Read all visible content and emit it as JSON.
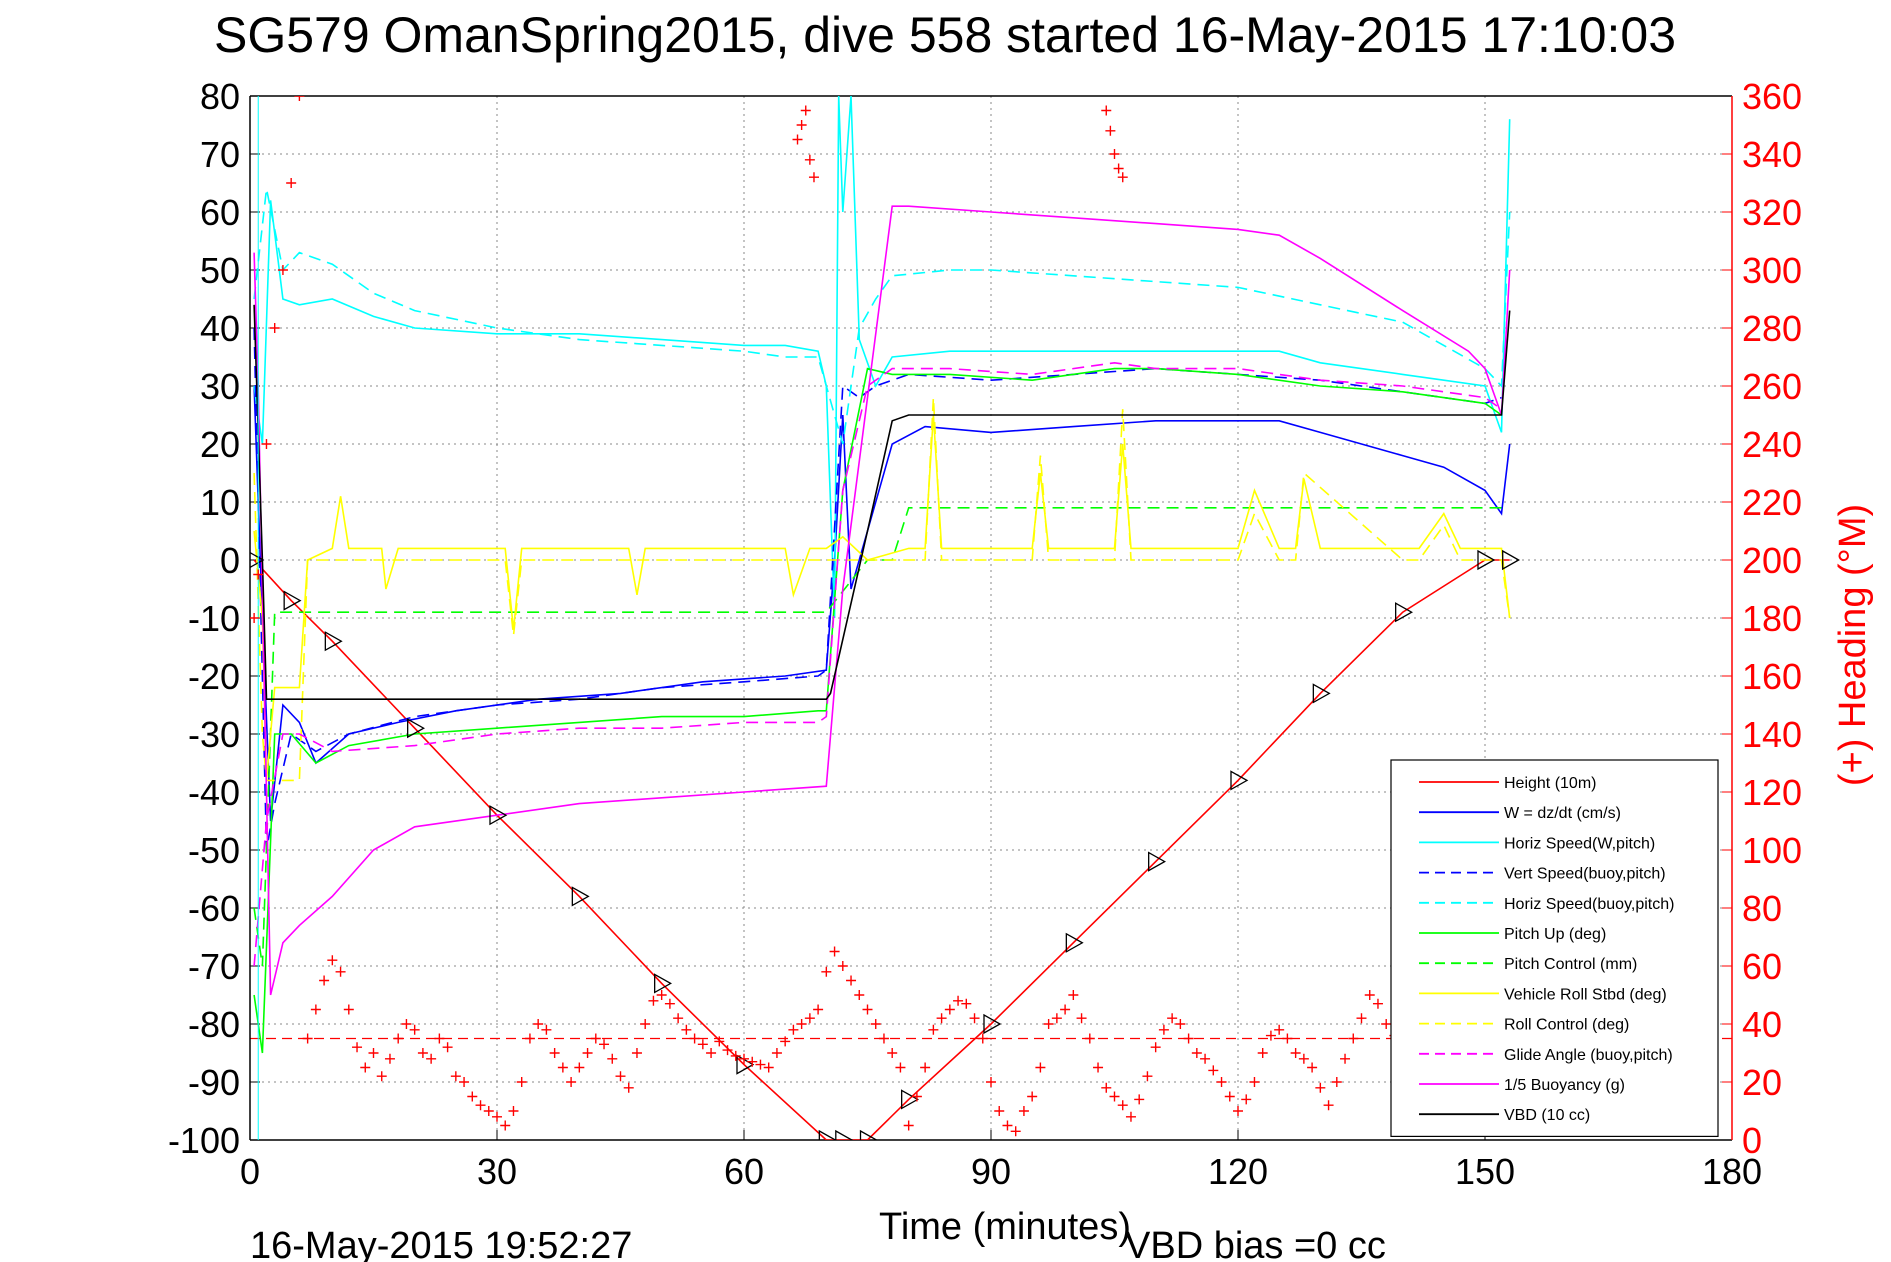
{
  "chart_data": {
    "type": "line",
    "title": "SG579 OmanSpring2015, dive 558 started 16-May-2015 17:10:03",
    "xlabel": "Time (minutes)",
    "ylabel": "",
    "y2label": "(+) Heading (°M)",
    "xlim": [
      0,
      180
    ],
    "ylim": [
      -100,
      80
    ],
    "y2lim": [
      0,
      360
    ],
    "xticks": [
      "0",
      "30",
      "60",
      "90",
      "120",
      "150",
      "180"
    ],
    "yticks": [
      "80",
      "70",
      "60",
      "50",
      "40",
      "30",
      "20",
      "10",
      "0",
      "-10",
      "-20",
      "-30",
      "-40",
      "-50",
      "-60",
      "-70",
      "-80",
      "-90",
      "-100"
    ],
    "y2ticks": [
      "360",
      "340",
      "320",
      "300",
      "280",
      "260",
      "240",
      "220",
      "200",
      "180",
      "160",
      "140",
      "120",
      "100",
      "80",
      "60",
      "40",
      "20",
      "0"
    ],
    "grid": true,
    "legend_position": "bottom-right",
    "footer_left": "16-May-2015 19:52:27",
    "footer_right": "VBD bias =0 cc",
    "colors": {
      "red": "#ff0000",
      "blue": "#0000ff",
      "cyan": "#00ffff",
      "green": "#00ff00",
      "yellow": "#ffff00",
      "magenta": "#ff00ff",
      "black": "#000000"
    },
    "series": [
      {
        "name": "Height (10m)",
        "color": "#ff0000",
        "dash": false,
        "x": [
          0.5,
          5,
          10,
          20,
          30,
          40,
          50,
          60,
          70,
          72,
          75,
          80,
          90,
          100,
          110,
          120,
          130,
          140,
          150,
          153
        ],
        "y": [
          0,
          -7,
          -14,
          -29,
          -44,
          -58,
          -73,
          -87,
          -100,
          -100,
          -100,
          -93,
          -80,
          -66,
          -52,
          -38,
          -23,
          -9,
          0,
          0
        ]
      },
      {
        "name": "W = dz/dt (cm/s)",
        "color": "#0000ff",
        "dash": false,
        "x": [
          0.5,
          1.5,
          2.5,
          4,
          6,
          8,
          12,
          18,
          25,
          35,
          45,
          55,
          65,
          70,
          71,
          72,
          73,
          75,
          78,
          82,
          90,
          100,
          110,
          120,
          125,
          130,
          140,
          145,
          150,
          152,
          153
        ],
        "y": [
          30,
          -10,
          -45,
          -25,
          -28,
          -35,
          -30,
          -28,
          -26,
          -24,
          -23,
          -21,
          -20,
          -19,
          0,
          25,
          -5,
          5,
          20,
          23,
          22,
          23,
          24,
          24,
          24,
          22,
          18,
          16,
          12,
          8,
          20
        ]
      },
      {
        "name": "Horiz Speed(W,pitch)",
        "color": "#00ffff",
        "dash": false,
        "x": [
          0.5,
          1.5,
          2.5,
          4,
          6,
          10,
          15,
          20,
          30,
          40,
          50,
          60,
          65,
          69,
          70,
          71,
          71.5,
          72,
          73,
          74,
          76,
          78,
          85,
          95,
          105,
          115,
          125,
          130,
          140,
          145,
          150,
          152,
          153
        ],
        "y": [
          30,
          20,
          62,
          45,
          44,
          45,
          42,
          40,
          39,
          39,
          38,
          37,
          37,
          36,
          30,
          -10,
          80,
          60,
          80,
          38,
          30,
          35,
          36,
          36,
          36,
          36,
          36,
          34,
          32,
          31,
          30,
          22,
          76
        ]
      },
      {
        "name": "Vert Speed(buoy,pitch)",
        "color": "#0000ff",
        "dash": true,
        "x": [
          0.5,
          2,
          3,
          5,
          8,
          12,
          20,
          30,
          40,
          50,
          60,
          69,
          70,
          72,
          74,
          76,
          80,
          90,
          100,
          110,
          120,
          130,
          140,
          150,
          152
        ],
        "y": [
          40,
          -50,
          -42,
          -30,
          -33,
          -30,
          -27,
          -25,
          -24,
          -22,
          -21,
          -20,
          -19,
          30,
          28,
          30,
          32,
          31,
          32,
          33,
          32,
          31,
          29,
          27,
          28
        ]
      },
      {
        "name": "Horiz Speed(buoy,pitch)",
        "color": "#00ffff",
        "dash": true,
        "x": [
          0.5,
          2,
          4,
          6,
          10,
          15,
          20,
          30,
          40,
          50,
          60,
          65,
          69,
          70,
          72,
          74,
          76,
          78,
          85,
          90,
          100,
          110,
          120,
          130,
          140,
          145,
          150,
          152,
          153
        ],
        "y": [
          45,
          64,
          50,
          53,
          51,
          46,
          43,
          40,
          38,
          37,
          36,
          35,
          35,
          30,
          20,
          40,
          45,
          49,
          50,
          50,
          49,
          48,
          47,
          44,
          41,
          37,
          33,
          30,
          60
        ]
      },
      {
        "name": "Pitch Up (deg)",
        "color": "#00ff00",
        "dash": false,
        "x": [
          0.5,
          1.5,
          3,
          5,
          8,
          12,
          20,
          30,
          40,
          50,
          60,
          69,
          70,
          72,
          75,
          78,
          85,
          95,
          105,
          110,
          120,
          130,
          140,
          150,
          152
        ],
        "y": [
          -75,
          -85,
          -30,
          -30,
          -35,
          -32,
          -30,
          -29,
          -28,
          -27,
          -27,
          -26,
          -26,
          12,
          33,
          32,
          32,
          31,
          33,
          33,
          32,
          30,
          29,
          27,
          25
        ]
      },
      {
        "name": "Pitch Control (mm)",
        "color": "#00ff00",
        "dash": true,
        "x": [
          0.5,
          1.5,
          3,
          6,
          20,
          40,
          60,
          69,
          70,
          75,
          78,
          80,
          100,
          120,
          140,
          150,
          152
        ],
        "y": [
          -60,
          -70,
          -9,
          -9,
          -9,
          -9,
          -9,
          -9,
          -9,
          0,
          0,
          9,
          9,
          9,
          9,
          9,
          9
        ]
      },
      {
        "name": "Vehicle Roll Stbd (deg)",
        "color": "#ffff00",
        "dash": false,
        "x": [
          0.5,
          1.5,
          2,
          3,
          5,
          6,
          7,
          10,
          11,
          12,
          14,
          16,
          16.5,
          18,
          20,
          31,
          32,
          33,
          35,
          46,
          47,
          48,
          50,
          60,
          65,
          66,
          68,
          70,
          72,
          75,
          80,
          82,
          83,
          84,
          90,
          95,
          96,
          97,
          100,
          105,
          106,
          107,
          110,
          120,
          122,
          125,
          127,
          128,
          130,
          140,
          142,
          145,
          147,
          150,
          152,
          153
        ],
        "y": [
          5,
          -10,
          -38,
          -22,
          -22,
          -22,
          0,
          2,
          11,
          2,
          2,
          2,
          -5,
          2,
          2,
          2,
          -12,
          2,
          2,
          2,
          -6,
          2,
          2,
          2,
          2,
          -6,
          2,
          2,
          4,
          0,
          2,
          2,
          25,
          2,
          2,
          2,
          15,
          2,
          2,
          2,
          20,
          2,
          2,
          2,
          12,
          2,
          2,
          14,
          2,
          2,
          2,
          8,
          2,
          2,
          2,
          -10
        ]
      },
      {
        "name": "Roll Control (deg)",
        "color": "#ffff00",
        "dash": true,
        "x": [
          0.5,
          1.5,
          2,
          3,
          5,
          6,
          7,
          20,
          31,
          32,
          33,
          47,
          48,
          70,
          72,
          78,
          80,
          82,
          83,
          84,
          90,
          95,
          96,
          97,
          105,
          106,
          107,
          120,
          122,
          125,
          127,
          128,
          140,
          142,
          145,
          147,
          152,
          153
        ],
        "y": [
          15,
          -30,
          -38,
          -38,
          -38,
          -38,
          0,
          0,
          0,
          -13,
          0,
          0,
          0,
          0,
          0,
          0,
          0,
          0,
          28,
          0,
          0,
          0,
          18,
          0,
          0,
          26,
          0,
          0,
          8,
          0,
          0,
          15,
          0,
          0,
          6,
          0,
          0,
          -10
        ]
      },
      {
        "name": "Glide Angle (buoy,pitch)",
        "color": "#ff00ff",
        "dash": true,
        "x": [
          0.5,
          2,
          4,
          6,
          10,
          20,
          30,
          40,
          50,
          60,
          69,
          70,
          72,
          75,
          78,
          85,
          95,
          105,
          110,
          120,
          130,
          140,
          150,
          152
        ],
        "y": [
          -70,
          -45,
          -30,
          -30,
          -33,
          -32,
          -30,
          -29,
          -29,
          -28,
          -28,
          -27,
          12,
          30,
          33,
          33,
          32,
          34,
          33,
          33,
          31,
          30,
          28,
          26
        ]
      },
      {
        "name": "1/5 Buoyancy (g)",
        "color": "#ff00ff",
        "dash": false,
        "x": [
          0.5,
          1,
          2.5,
          4,
          6,
          10,
          15,
          20,
          30,
          40,
          50,
          60,
          70,
          72,
          78,
          80,
          90,
          100,
          110,
          120,
          125,
          130,
          140,
          148,
          150,
          152,
          153
        ],
        "y": [
          53,
          30,
          -75,
          -66,
          -63,
          -58,
          -50,
          -46,
          -44,
          -42,
          -41,
          -40,
          -39,
          -5,
          61,
          61,
          60,
          59,
          58,
          57,
          56,
          52,
          43,
          36,
          33,
          25,
          50
        ]
      },
      {
        "name": "VBD (10 cc)",
        "color": "#000000",
        "dash": false,
        "x": [
          0.5,
          1.5,
          2,
          6,
          20,
          40,
          60,
          70,
          70.5,
          75,
          78,
          80,
          100,
          120,
          140,
          150,
          152,
          153
        ],
        "y": [
          44,
          0,
          -24,
          -24,
          -24,
          -24,
          -24,
          -24,
          -23,
          5,
          24,
          25,
          25,
          25,
          25,
          25,
          25,
          43
        ]
      }
    ],
    "heading_series": {
      "name": "Heading",
      "color": "#ff0000",
      "marker": "+",
      "axis": "right",
      "x": [
        0.5,
        1,
        2,
        3,
        4,
        5,
        6,
        7,
        8,
        9,
        10,
        11,
        12,
        13,
        14,
        15,
        16,
        17,
        18,
        19,
        20,
        21,
        22,
        23,
        24,
        25,
        26,
        27,
        28,
        29,
        30,
        31,
        32,
        33,
        34,
        35,
        36,
        37,
        38,
        39,
        40,
        41,
        42,
        43,
        44,
        45,
        46,
        47,
        48,
        49,
        50,
        51,
        52,
        53,
        54,
        55,
        56,
        57,
        58,
        59,
        60,
        61,
        62,
        63,
        64,
        65,
        66,
        67,
        68,
        69,
        70,
        71,
        72,
        73,
        74,
        75,
        76,
        77,
        78,
        79,
        80,
        81,
        82,
        83,
        84,
        85,
        86,
        87,
        88,
        89,
        90,
        91,
        92,
        93,
        94,
        95,
        96,
        97,
        98,
        99,
        100,
        101,
        102,
        103,
        104,
        105,
        106,
        107,
        108,
        109,
        110,
        111,
        112,
        113,
        114,
        115,
        116,
        117,
        118,
        119,
        120,
        121,
        122,
        123,
        124,
        125,
        126,
        127,
        128,
        129,
        130,
        131,
        132,
        133,
        134,
        135,
        136,
        137,
        138,
        139,
        140,
        141,
        142,
        143,
        144,
        145,
        146,
        147,
        148,
        149,
        150,
        151,
        152
      ],
      "y": [
        180,
        195,
        240,
        280,
        300,
        330,
        360,
        35,
        45,
        55,
        62,
        58,
        45,
        32,
        25,
        30,
        22,
        28,
        35,
        40,
        38,
        30,
        28,
        35,
        32,
        22,
        20,
        15,
        12,
        10,
        8,
        5,
        10,
        20,
        35,
        40,
        38,
        30,
        25,
        20,
        25,
        30,
        35,
        33,
        28,
        22,
        18,
        30,
        40,
        48,
        50,
        47,
        42,
        38,
        35,
        33,
        30,
        34,
        31,
        29,
        28,
        27,
        26,
        25,
        30,
        34,
        38,
        40,
        42,
        45,
        58,
        65,
        60,
        55,
        50,
        45,
        40,
        35,
        30,
        25,
        5,
        15,
        25,
        38,
        42,
        45,
        48,
        47,
        42,
        35,
        20,
        10,
        5,
        3,
        10,
        15,
        25,
        40,
        42,
        45,
        50,
        42,
        35,
        25,
        18,
        15,
        12,
        8,
        14,
        22,
        32,
        38,
        42,
        40,
        35,
        30,
        28,
        24,
        20,
        15,
        10,
        14,
        20,
        30,
        36,
        38,
        35,
        30,
        28,
        25,
        18,
        12,
        20,
        28,
        35,
        42,
        50,
        47,
        40,
        36,
        35,
        34,
        33,
        32,
        31,
        30,
        29,
        28,
        27,
        26,
        25,
        24,
        23
      ],
      "extra_points": [
        {
          "x": 66.5,
          "y": 345
        },
        {
          "x": 67,
          "y": 350
        },
        {
          "x": 67.5,
          "y": 355
        },
        {
          "x": 68,
          "y": 338
        },
        {
          "x": 68.5,
          "y": 332
        },
        {
          "x": 104,
          "y": 355
        },
        {
          "x": 104.5,
          "y": 348
        },
        {
          "x": 105,
          "y": 340
        },
        {
          "x": 105.5,
          "y": 335
        },
        {
          "x": 106,
          "y": 332
        }
      ],
      "reference_value": 35
    },
    "vertical_marker": {
      "x": 1,
      "label": "0"
    }
  }
}
